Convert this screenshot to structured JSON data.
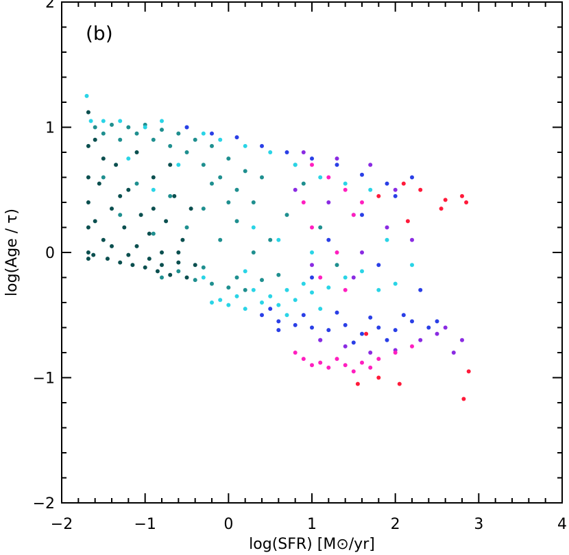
{
  "chart_data": {
    "type": "scatter",
    "panel_label": "(b)",
    "xlabel": "log(SFR) [M⊙/yr]",
    "ylabel": "log(Age / τ)",
    "xlim": [
      -2,
      4
    ],
    "ylim": [
      -2,
      2
    ],
    "x_ticks": [
      -2,
      -1,
      0,
      1,
      2,
      3,
      4
    ],
    "x_tick_labels": [
      "−2",
      "−1",
      "0",
      "1",
      "2",
      "3",
      "4"
    ],
    "y_ticks": [
      -2,
      -1,
      0,
      1,
      2
    ],
    "y_tick_labels": [
      "−2",
      "−1",
      "0",
      "1",
      "2"
    ],
    "grid": false,
    "legend": "none",
    "colors": {
      "dark_teal": "#0b4f4f",
      "teal": "#1f8f8f",
      "cyan": "#2ad4e6",
      "blue": "#2a3fe6",
      "violet": "#8a2be2",
      "magenta": "#ff1fbf",
      "red": "#ff1a3a"
    },
    "series": [
      {
        "name": "dark teal",
        "color": "#0b4f4f",
        "points": [
          [
            -1.68,
            1.12
          ],
          [
            -1.68,
            0.85
          ],
          [
            -1.68,
            0.6
          ],
          [
            -1.68,
            0.4
          ],
          [
            -1.68,
            0.2
          ],
          [
            -1.68,
            0.0
          ],
          [
            -1.68,
            -0.05
          ],
          [
            -1.6,
            0.9
          ],
          [
            -1.55,
            0.55
          ],
          [
            -1.5,
            0.1
          ],
          [
            -1.45,
            -0.05
          ],
          [
            -1.4,
            0.35
          ],
          [
            -1.35,
            0.7
          ],
          [
            -1.3,
            -0.08
          ],
          [
            -1.25,
            0.2
          ],
          [
            -1.2,
            0.5
          ],
          [
            -1.15,
            -0.1
          ],
          [
            -1.1,
            0.05
          ],
          [
            -1.05,
            0.3
          ],
          [
            -1.0,
            -0.12
          ],
          [
            -0.95,
            0.15
          ],
          [
            -0.9,
            0.6
          ],
          [
            -0.85,
            -0.15
          ],
          [
            -0.8,
            0.0
          ],
          [
            -0.75,
            0.25
          ],
          [
            -0.7,
            -0.18
          ],
          [
            -0.65,
            0.45
          ],
          [
            -0.6,
            -0.08
          ],
          [
            -0.55,
            0.1
          ],
          [
            -0.5,
            -0.2
          ],
          [
            -0.45,
            0.35
          ],
          [
            -0.4,
            -0.1
          ],
          [
            -1.6,
            0.25
          ],
          [
            -1.5,
            0.75
          ],
          [
            -1.3,
            0.45
          ],
          [
            -1.1,
            0.8
          ],
          [
            -0.9,
            0.35
          ],
          [
            -0.7,
            0.7
          ],
          [
            -1.62,
            -0.02
          ],
          [
            -1.4,
            0.05
          ],
          [
            -1.2,
            -0.02
          ],
          [
            -0.95,
            -0.05
          ],
          [
            -0.8,
            -0.1
          ],
          [
            -0.6,
            0.0
          ]
        ]
      },
      {
        "name": "teal",
        "color": "#1f8f8f",
        "points": [
          [
            -1.6,
            1.0
          ],
          [
            -1.5,
            0.95
          ],
          [
            -1.4,
            1.02
          ],
          [
            -1.3,
            0.9
          ],
          [
            -1.2,
            1.0
          ],
          [
            -1.1,
            0.95
          ],
          [
            -1.0,
            1.02
          ],
          [
            -0.9,
            0.9
          ],
          [
            -0.8,
            0.98
          ],
          [
            -0.7,
            0.85
          ],
          [
            -0.6,
            0.95
          ],
          [
            -0.5,
            0.8
          ],
          [
            -0.4,
            0.9
          ],
          [
            -0.3,
            0.7
          ],
          [
            -0.2,
            0.85
          ],
          [
            -0.1,
            0.6
          ],
          [
            0.0,
            0.75
          ],
          [
            0.1,
            0.5
          ],
          [
            0.2,
            0.65
          ],
          [
            0.3,
            0.4
          ],
          [
            -1.5,
            0.6
          ],
          [
            -1.3,
            0.3
          ],
          [
            -1.1,
            0.55
          ],
          [
            -0.9,
            0.15
          ],
          [
            -0.7,
            0.45
          ],
          [
            -0.5,
            0.2
          ],
          [
            -0.3,
            0.35
          ],
          [
            -0.1,
            0.1
          ],
          [
            0.1,
            0.25
          ],
          [
            0.3,
            0.0
          ],
          [
            -0.6,
            -0.15
          ],
          [
            -0.4,
            -0.22
          ],
          [
            -0.2,
            -0.25
          ],
          [
            0.0,
            -0.28
          ],
          [
            0.2,
            -0.3
          ],
          [
            0.4,
            -0.22
          ],
          [
            0.6,
            -0.18
          ],
          [
            -0.8,
            -0.2
          ],
          [
            -0.3,
            -0.12
          ],
          [
            0.1,
            -0.2
          ],
          [
            0.5,
            0.1
          ],
          [
            0.7,
            0.3
          ],
          [
            0.9,
            0.55
          ],
          [
            1.1,
            0.2
          ],
          [
            1.3,
            -0.1
          ],
          [
            -0.2,
            0.55
          ],
          [
            0.0,
            0.4
          ],
          [
            0.4,
            0.6
          ],
          [
            0.8,
            0.7
          ]
        ]
      },
      {
        "name": "cyan",
        "color": "#2ad4e6",
        "points": [
          [
            -1.7,
            1.25
          ],
          [
            -1.65,
            1.05
          ],
          [
            -1.5,
            1.05
          ],
          [
            -1.3,
            1.05
          ],
          [
            -1.0,
            1.0
          ],
          [
            -0.8,
            1.05
          ],
          [
            -0.5,
            1.0
          ],
          [
            -0.3,
            0.95
          ],
          [
            -0.1,
            0.9
          ],
          [
            0.2,
            0.85
          ],
          [
            0.5,
            0.8
          ],
          [
            0.8,
            0.7
          ],
          [
            1.1,
            0.6
          ],
          [
            1.4,
            0.55
          ],
          [
            1.7,
            0.5
          ],
          [
            -0.2,
            -0.4
          ],
          [
            -0.1,
            -0.38
          ],
          [
            0.0,
            -0.42
          ],
          [
            0.1,
            -0.35
          ],
          [
            0.2,
            -0.45
          ],
          [
            0.3,
            -0.3
          ],
          [
            0.4,
            -0.4
          ],
          [
            0.5,
            -0.35
          ],
          [
            0.6,
            -0.42
          ],
          [
            0.7,
            -0.3
          ],
          [
            0.8,
            -0.38
          ],
          [
            0.9,
            -0.25
          ],
          [
            1.0,
            -0.32
          ],
          [
            1.2,
            -0.28
          ],
          [
            1.4,
            -0.2
          ],
          [
            1.6,
            -0.15
          ],
          [
            1.8,
            -0.3
          ],
          [
            2.0,
            -0.25
          ],
          [
            -0.6,
            0.7
          ],
          [
            -0.9,
            0.5
          ],
          [
            -1.2,
            0.75
          ],
          [
            0.3,
            0.2
          ],
          [
            0.6,
            0.1
          ],
          [
            1.0,
            0.0
          ],
          [
            1.5,
            0.3
          ],
          [
            1.9,
            0.1
          ],
          [
            2.2,
            -0.1
          ],
          [
            -0.3,
            -0.2
          ],
          [
            0.2,
            -0.15
          ],
          [
            0.7,
            -0.5
          ],
          [
            1.1,
            -0.45
          ]
        ]
      },
      {
        "name": "blue",
        "color": "#2a3fe6",
        "points": [
          [
            -0.5,
            1.0
          ],
          [
            -0.2,
            0.95
          ],
          [
            0.1,
            0.92
          ],
          [
            0.4,
            0.85
          ],
          [
            0.7,
            0.8
          ],
          [
            1.0,
            0.75
          ],
          [
            1.3,
            0.7
          ],
          [
            1.6,
            0.62
          ],
          [
            1.9,
            0.55
          ],
          [
            2.2,
            0.6
          ],
          [
            0.4,
            -0.5
          ],
          [
            0.6,
            -0.55
          ],
          [
            0.8,
            -0.58
          ],
          [
            1.0,
            -0.6
          ],
          [
            1.2,
            -0.62
          ],
          [
            1.4,
            -0.58
          ],
          [
            1.6,
            -0.65
          ],
          [
            1.8,
            -0.6
          ],
          [
            2.0,
            -0.62
          ],
          [
            2.2,
            -0.55
          ],
          [
            2.4,
            -0.6
          ],
          [
            0.5,
            -0.45
          ],
          [
            0.9,
            -0.5
          ],
          [
            1.3,
            -0.48
          ],
          [
            1.7,
            -0.52
          ],
          [
            2.1,
            -0.5
          ],
          [
            0.6,
            -0.62
          ],
          [
            1.1,
            -0.7
          ],
          [
            1.5,
            -0.72
          ],
          [
            1.9,
            -0.7
          ],
          [
            1.2,
            0.1
          ],
          [
            1.6,
            0.3
          ],
          [
            2.0,
            0.45
          ],
          [
            1.0,
            -0.2
          ],
          [
            1.8,
            -0.1
          ],
          [
            2.3,
            -0.3
          ],
          [
            2.5,
            -0.55
          ]
        ]
      },
      {
        "name": "violet",
        "color": "#8a2be2",
        "points": [
          [
            0.9,
            0.8
          ],
          [
            1.3,
            0.75
          ],
          [
            1.7,
            0.7
          ],
          [
            2.0,
            0.5
          ],
          [
            1.1,
            -0.7
          ],
          [
            1.4,
            -0.75
          ],
          [
            1.7,
            -0.8
          ],
          [
            2.0,
            -0.78
          ],
          [
            2.3,
            -0.7
          ],
          [
            2.5,
            -0.65
          ],
          [
            2.6,
            -0.6
          ],
          [
            2.8,
            -0.7
          ],
          [
            2.7,
            -0.8
          ],
          [
            1.5,
            -0.2
          ],
          [
            1.9,
            0.2
          ],
          [
            2.2,
            0.1
          ],
          [
            1.2,
            0.4
          ],
          [
            0.8,
            0.5
          ],
          [
            1.0,
            -0.1
          ],
          [
            1.6,
            0.0
          ]
        ]
      },
      {
        "name": "magenta",
        "color": "#ff1fbf",
        "points": [
          [
            0.8,
            -0.8
          ],
          [
            0.9,
            -0.85
          ],
          [
            1.0,
            -0.9
          ],
          [
            1.1,
            -0.88
          ],
          [
            1.2,
            -0.92
          ],
          [
            1.3,
            -0.85
          ],
          [
            1.4,
            -0.9
          ],
          [
            1.5,
            -0.95
          ],
          [
            1.6,
            -0.88
          ],
          [
            1.7,
            -0.92
          ],
          [
            1.8,
            -0.85
          ],
          [
            1.0,
            0.7
          ],
          [
            1.2,
            0.6
          ],
          [
            1.4,
            0.5
          ],
          [
            1.6,
            0.4
          ],
          [
            1.0,
            0.2
          ],
          [
            1.3,
            0.0
          ],
          [
            1.1,
            -0.2
          ],
          [
            1.5,
            0.3
          ],
          [
            0.9,
            0.4
          ],
          [
            1.4,
            -0.3
          ],
          [
            2.0,
            -0.8
          ],
          [
            2.2,
            -0.75
          ]
        ]
      },
      {
        "name": "red",
        "color": "#ff1a3a",
        "points": [
          [
            2.1,
            0.55
          ],
          [
            2.55,
            0.35
          ],
          [
            2.6,
            0.42
          ],
          [
            2.8,
            0.45
          ],
          [
            2.85,
            0.4
          ],
          [
            2.15,
            0.25
          ],
          [
            1.55,
            -1.05
          ],
          [
            1.8,
            -1.0
          ],
          [
            2.05,
            -1.05
          ],
          [
            2.88,
            -0.95
          ],
          [
            2.82,
            -1.17
          ],
          [
            1.65,
            -0.65
          ],
          [
            1.8,
            0.45
          ],
          [
            2.3,
            0.5
          ]
        ]
      }
    ]
  }
}
